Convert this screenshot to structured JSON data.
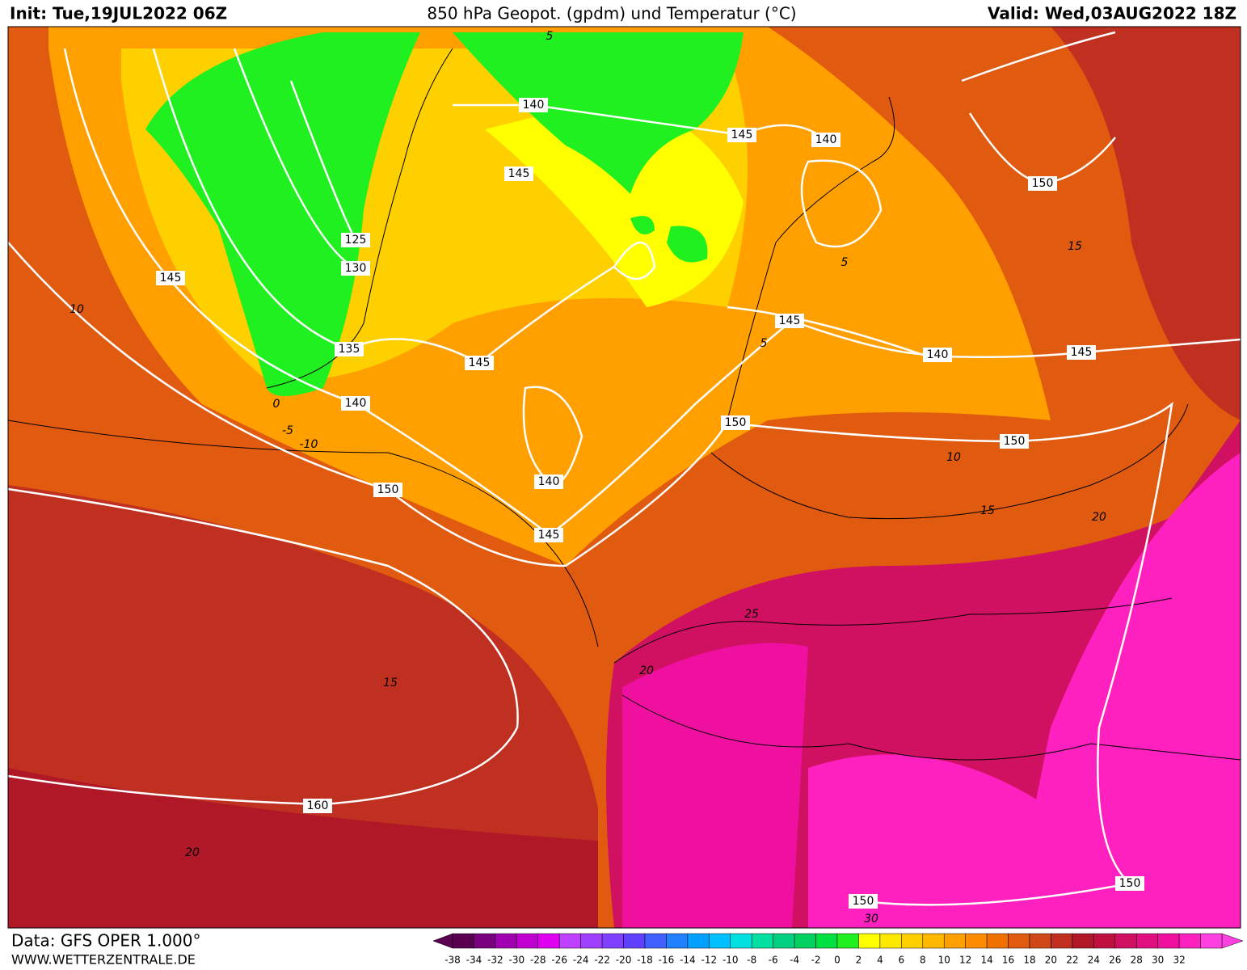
{
  "header": {
    "init": "Init: Tue,19JUL2022 06Z",
    "title": "850 hPa Geopot. (gpdm) und Temperatur (°C)",
    "valid": "Valid: Wed,03AUG2022 18Z"
  },
  "map": {
    "geopotential_labels": [
      "140",
      "145",
      "140",
      "150",
      "145",
      "125",
      "130",
      "145",
      "135",
      "145",
      "145",
      "140",
      "145",
      "140",
      "150",
      "150",
      "150",
      "140",
      "145",
      "160",
      "150",
      "150"
    ],
    "temperature_labels": [
      "5",
      "10",
      "0",
      "-5",
      "-10",
      "10",
      "15",
      "20",
      "25",
      "20",
      "15",
      "20",
      "30",
      "15",
      "5",
      "5"
    ]
  },
  "footer": {
    "data": "Data: GFS OPER 1.000°",
    "site": "WWW.WETTERZENTRALE.DE"
  },
  "colorbar": {
    "labels": [
      "-38",
      "-34",
      "-32",
      "-30",
      "-28",
      "-26",
      "-24",
      "-22",
      "-20",
      "-18",
      "-16",
      "-14",
      "-12",
      "-10",
      "-8",
      "-6",
      "-4",
      "-2",
      "0",
      "2",
      "4",
      "6",
      "8",
      "10",
      "12",
      "14",
      "16",
      "18",
      "20",
      "22",
      "24",
      "26",
      "28",
      "30",
      "32"
    ],
    "colors": [
      "#5a0050",
      "#7a0080",
      "#a000b0",
      "#c000d0",
      "#e000f0",
      "#c040ff",
      "#a040ff",
      "#8040ff",
      "#6040ff",
      "#4060ff",
      "#2080ff",
      "#00a0ff",
      "#00c0ff",
      "#00e0e0",
      "#00e0a0",
      "#00d080",
      "#00d060",
      "#00e040",
      "#20f020",
      "#ffff00",
      "#ffe800",
      "#ffd000",
      "#ffb800",
      "#ffa000",
      "#ff8c00",
      "#f07000",
      "#e05a10",
      "#d04818",
      "#c03020",
      "#b01828",
      "#c01040",
      "#d01060",
      "#e01080",
      "#f010a0",
      "#ff20c0",
      "#ff40e0"
    ]
  }
}
